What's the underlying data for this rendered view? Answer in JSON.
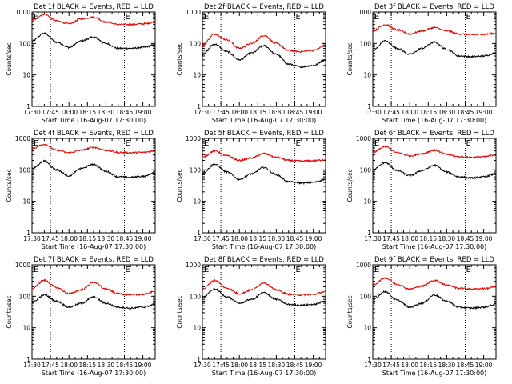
{
  "colors": {
    "background": "#ffffff",
    "events": "#000000",
    "lld": "#dd0000",
    "axes": "#000000"
  },
  "chart_data": [
    {
      "type": "line",
      "title": "Det 1f BLACK = Events, RED = LLD",
      "xlabel": "Start Time (16-Aug-07 17:30:00)",
      "ylabel": "Counts/sec",
      "yscale": "log",
      "ylim": [
        1,
        1000
      ],
      "xlim": [
        "17:30",
        "19:10"
      ],
      "x_ticks": [
        "17:30",
        "17:45",
        "18:00",
        "18:15",
        "18:30",
        "18:45",
        "19:00"
      ],
      "y_ticks": [
        "1",
        "10",
        "100",
        "1000"
      ],
      "marker_label": "E",
      "vlines": [
        "17:45",
        "18:45"
      ],
      "grid": false,
      "series": [
        {
          "x": [
            "17:30",
            "17:40",
            "17:50",
            "18:00",
            "18:10",
            "18:20",
            "18:30",
            "18:40",
            "18:50",
            "19:00",
            "19:10"
          ],
          "values": [
            120,
            210,
            110,
            75,
            120,
            160,
            100,
            70,
            70,
            75,
            90
          ]
        },
        {
          "x": [
            "17:30",
            "17:40",
            "17:50",
            "18:00",
            "18:10",
            "18:20",
            "18:30",
            "18:40",
            "18:50",
            "19:00",
            "19:10"
          ],
          "values": [
            550,
            850,
            520,
            420,
            600,
            680,
            480,
            400,
            400,
            420,
            470
          ]
        }
      ]
    },
    {
      "type": "line",
      "title": "Det 2f BLACK = Events, RED = LLD",
      "xlabel": "Start Time (16-Aug-07 17:30:00)",
      "ylabel": "Counts/sec",
      "yscale": "log",
      "ylim": [
        1,
        1000
      ],
      "xlim": [
        "17:30",
        "19:10"
      ],
      "x_ticks": [
        "17:30",
        "17:45",
        "18:00",
        "18:15",
        "18:30",
        "18:45",
        "19:00"
      ],
      "y_ticks": [
        "1",
        "10",
        "100",
        "1000"
      ],
      "marker_label": "E",
      "vlines": [
        "17:45",
        "18:45"
      ],
      "grid": false,
      "series": [
        {
          "x": [
            "17:30",
            "17:40",
            "17:50",
            "18:00",
            "18:10",
            "18:20",
            "18:30",
            "18:40",
            "18:50",
            "19:00",
            "19:10"
          ],
          "values": [
            45,
            95,
            55,
            30,
            50,
            85,
            45,
            22,
            18,
            20,
            30
          ]
        },
        {
          "x": [
            "17:30",
            "17:40",
            "17:50",
            "18:00",
            "18:10",
            "18:20",
            "18:30",
            "18:40",
            "18:50",
            "19:00",
            "19:10"
          ],
          "values": [
            90,
            200,
            130,
            70,
            100,
            180,
            100,
            60,
            55,
            60,
            85
          ]
        }
      ]
    },
    {
      "type": "line",
      "title": "Det 3f BLACK = Events, RED = LLD",
      "xlabel": "Start Time (16-Aug-07 17:30:00)",
      "ylabel": "Counts/sec",
      "yscale": "log",
      "ylim": [
        1,
        1000
      ],
      "xlim": [
        "17:30",
        "19:10"
      ],
      "x_ticks": [
        "17:30",
        "17:45",
        "18:00",
        "18:15",
        "18:30",
        "18:45",
        "19:00"
      ],
      "y_ticks": [
        "1",
        "10",
        "100",
        "1000"
      ],
      "marker_label": "E",
      "vlines": [
        "17:45",
        "18:45"
      ],
      "grid": false,
      "series": [
        {
          "x": [
            "17:30",
            "17:40",
            "17:50",
            "18:00",
            "18:10",
            "18:20",
            "18:30",
            "18:40",
            "18:50",
            "19:00",
            "19:10"
          ],
          "values": [
            60,
            120,
            70,
            45,
            70,
            110,
            65,
            40,
            38,
            40,
            50
          ]
        },
        {
          "x": [
            "17:30",
            "17:40",
            "17:50",
            "18:00",
            "18:10",
            "18:20",
            "18:30",
            "18:40",
            "18:50",
            "19:00",
            "19:10"
          ],
          "values": [
            250,
            400,
            270,
            200,
            250,
            320,
            250,
            200,
            190,
            195,
            210
          ]
        }
      ]
    },
    {
      "type": "line",
      "title": "Det 4f BLACK = Events, RED = LLD",
      "xlabel": "Start Time (16-Aug-07 17:30:00)",
      "ylabel": "Counts/sec",
      "yscale": "log",
      "ylim": [
        1,
        1000
      ],
      "xlim": [
        "17:30",
        "19:10"
      ],
      "x_ticks": [
        "17:30",
        "17:45",
        "18:00",
        "18:15",
        "18:30",
        "18:45",
        "19:00"
      ],
      "y_ticks": [
        "1",
        "10",
        "100",
        "1000"
      ],
      "marker_label": "E",
      "vlines": [
        "17:45",
        "18:45"
      ],
      "grid": false,
      "series": [
        {
          "x": [
            "17:30",
            "17:40",
            "17:50",
            "18:00",
            "18:10",
            "18:20",
            "18:30",
            "18:40",
            "18:50",
            "19:00",
            "19:10"
          ],
          "values": [
            110,
            190,
            100,
            65,
            110,
            150,
            90,
            60,
            58,
            62,
            80
          ]
        },
        {
          "x": [
            "17:30",
            "17:40",
            "17:50",
            "18:00",
            "18:10",
            "18:20",
            "18:30",
            "18:40",
            "18:50",
            "19:00",
            "19:10"
          ],
          "values": [
            480,
            650,
            420,
            350,
            420,
            520,
            420,
            360,
            350,
            360,
            400
          ]
        }
      ]
    },
    {
      "type": "line",
      "title": "Det 5f BLACK = Events, RED = LLD",
      "xlabel": "Start Time (16-Aug-07 17:30:00)",
      "ylabel": "Counts/sec",
      "yscale": "log",
      "ylim": [
        1,
        1000
      ],
      "xlim": [
        "17:30",
        "19:10"
      ],
      "x_ticks": [
        "17:30",
        "17:45",
        "18:00",
        "18:15",
        "18:30",
        "18:45",
        "19:00"
      ],
      "y_ticks": [
        "1",
        "10",
        "100",
        "1000"
      ],
      "marker_label": "E",
      "vlines": [
        "17:45",
        "18:45"
      ],
      "grid": false,
      "series": [
        {
          "x": [
            "17:30",
            "17:40",
            "17:50",
            "18:00",
            "18:10",
            "18:20",
            "18:30",
            "18:40",
            "18:50",
            "19:00",
            "19:10"
          ],
          "values": [
            80,
            150,
            85,
            50,
            75,
            120,
            70,
            42,
            38,
            40,
            50
          ]
        },
        {
          "x": [
            "17:30",
            "17:40",
            "17:50",
            "18:00",
            "18:10",
            "18:20",
            "18:30",
            "18:40",
            "18:50",
            "19:00",
            "19:10"
          ],
          "values": [
            250,
            400,
            280,
            200,
            240,
            330,
            250,
            200,
            190,
            195,
            210
          ]
        }
      ]
    },
    {
      "type": "line",
      "title": "Det 6f BLACK = Events, RED = LLD",
      "xlabel": "Start Time (16-Aug-07 17:30:00)",
      "ylabel": "Counts/sec",
      "yscale": "log",
      "ylim": [
        1,
        1000
      ],
      "xlim": [
        "17:30",
        "19:10"
      ],
      "x_ticks": [
        "17:30",
        "17:45",
        "18:00",
        "18:15",
        "18:30",
        "18:45",
        "19:00"
      ],
      "y_ticks": [
        "1",
        "10",
        "100",
        "1000"
      ],
      "marker_label": "E",
      "vlines": [
        "17:45",
        "18:45"
      ],
      "grid": false,
      "series": [
        {
          "x": [
            "17:30",
            "17:40",
            "17:50",
            "18:00",
            "18:10",
            "18:20",
            "18:30",
            "18:40",
            "18:50",
            "19:00",
            "19:10"
          ],
          "values": [
            100,
            170,
            95,
            65,
            95,
            140,
            85,
            60,
            55,
            60,
            75
          ]
        },
        {
          "x": [
            "17:30",
            "17:40",
            "17:50",
            "18:00",
            "18:10",
            "18:20",
            "18:30",
            "18:40",
            "18:50",
            "19:00",
            "19:10"
          ],
          "values": [
            350,
            550,
            350,
            280,
            330,
            420,
            310,
            260,
            250,
            260,
            300
          ]
        }
      ]
    },
    {
      "type": "line",
      "title": "Det 7f BLACK = Events, RED = LLD",
      "xlabel": "Start Time (16-Aug-07 17:30:00)",
      "ylabel": "Counts/sec",
      "yscale": "log",
      "ylim": [
        1,
        1000
      ],
      "xlim": [
        "17:30",
        "19:10"
      ],
      "x_ticks": [
        "17:30",
        "17:45",
        "18:00",
        "18:15",
        "18:30",
        "18:45",
        "19:00"
      ],
      "y_ticks": [
        "1",
        "10",
        "100",
        "1000"
      ],
      "marker_label": "E",
      "vlines": [
        "17:45",
        "18:45"
      ],
      "grid": false,
      "series": [
        {
          "x": [
            "17:30",
            "17:40",
            "17:50",
            "18:00",
            "18:10",
            "18:20",
            "18:30",
            "18:40",
            "18:50",
            "19:00",
            "19:10"
          ],
          "values": [
            65,
            110,
            70,
            45,
            60,
            95,
            60,
            45,
            42,
            45,
            55
          ]
        },
        {
          "x": [
            "17:30",
            "17:40",
            "17:50",
            "18:00",
            "18:10",
            "18:20",
            "18:30",
            "18:40",
            "18:50",
            "19:00",
            "19:10"
          ],
          "values": [
            180,
            320,
            190,
            120,
            160,
            280,
            170,
            120,
            110,
            115,
            140
          ]
        }
      ]
    },
    {
      "type": "line",
      "title": "Det 8f BLACK = Events, RED = LLD",
      "xlabel": "Start Time (16-Aug-07 17:30:00)",
      "ylabel": "Counts/sec",
      "yscale": "log",
      "ylim": [
        1,
        1000
      ],
      "xlim": [
        "17:30",
        "19:10"
      ],
      "x_ticks": [
        "17:30",
        "17:45",
        "18:00",
        "18:15",
        "18:30",
        "18:45",
        "19:00"
      ],
      "y_ticks": [
        "1",
        "10",
        "100",
        "1000"
      ],
      "marker_label": "E",
      "vlines": [
        "17:45",
        "18:45"
      ],
      "grid": false,
      "series": [
        {
          "x": [
            "17:30",
            "17:40",
            "17:50",
            "18:00",
            "18:10",
            "18:20",
            "18:30",
            "18:40",
            "18:50",
            "19:00",
            "19:10"
          ],
          "values": [
            90,
            170,
            95,
            60,
            80,
            130,
            80,
            55,
            52,
            55,
            70
          ]
        },
        {
          "x": [
            "17:30",
            "17:40",
            "17:50",
            "18:00",
            "18:10",
            "18:20",
            "18:30",
            "18:40",
            "18:50",
            "19:00",
            "19:10"
          ],
          "values": [
            170,
            320,
            180,
            120,
            160,
            270,
            160,
            115,
            110,
            115,
            140
          ]
        }
      ]
    },
    {
      "type": "line",
      "title": "Det 9f BLACK = Events, RED = LLD",
      "xlabel": "Start Time (16-Aug-07 17:30:00)",
      "ylabel": "Counts/sec",
      "yscale": "log",
      "ylim": [
        1,
        1000
      ],
      "xlim": [
        "17:30",
        "19:10"
      ],
      "x_ticks": [
        "17:30",
        "17:45",
        "18:00",
        "18:15",
        "18:30",
        "18:45",
        "19:00"
      ],
      "y_ticks": [
        "1",
        "10",
        "100",
        "1000"
      ],
      "marker_label": "E",
      "vlines": [
        "17:45",
        "18:45"
      ],
      "grid": false,
      "series": [
        {
          "x": [
            "17:30",
            "17:40",
            "17:50",
            "18:00",
            "18:10",
            "18:20",
            "18:30",
            "18:40",
            "18:50",
            "19:00",
            "19:10"
          ],
          "values": [
            80,
            140,
            75,
            45,
            60,
            110,
            70,
            45,
            42,
            45,
            55
          ]
        },
        {
          "x": [
            "17:30",
            "17:40",
            "17:50",
            "18:00",
            "18:10",
            "18:20",
            "18:30",
            "18:40",
            "18:50",
            "19:00",
            "19:10"
          ],
          "values": [
            230,
            380,
            240,
            170,
            210,
            320,
            230,
            180,
            170,
            175,
            200
          ]
        }
      ]
    }
  ]
}
